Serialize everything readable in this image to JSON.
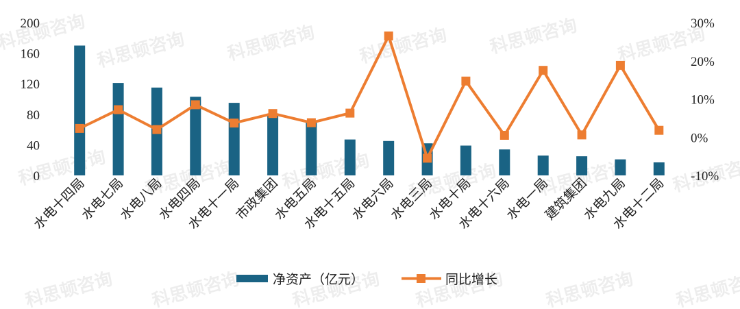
{
  "chart_data": {
    "type": "bar+line",
    "categories": [
      "水电十四局",
      "水电七局",
      "水电八局",
      "水电四局",
      "水电十一局",
      "市政集团",
      "水电五局",
      "水电十五局",
      "水电六局",
      "水电三局",
      "水电十局",
      "水电十六局",
      "水电一局",
      "建筑集团",
      "水电九局",
      "水电十二局"
    ],
    "series": [
      {
        "name": "净资产（亿元）",
        "type": "bar",
        "axis": "left",
        "color": "#1a6384",
        "values": [
          170,
          121,
          115,
          103,
          95,
          78,
          71,
          47,
          45,
          42,
          39,
          34,
          26,
          25,
          21,
          17
        ]
      },
      {
        "name": "同比增长",
        "type": "line",
        "axis": "right",
        "color": "#ed7d31",
        "marker": "square",
        "values": [
          2.3,
          7.2,
          2.0,
          8.5,
          3.7,
          6.2,
          3.8,
          6.3,
          26.5,
          -5.5,
          14.7,
          0.5,
          17.5,
          0.6,
          18.8,
          1.8
        ]
      }
    ],
    "y_left": {
      "min": 0,
      "max": 200,
      "ticks": [
        "0",
        "40",
        "80",
        "120",
        "160",
        "200"
      ]
    },
    "y_right": {
      "min": -10,
      "max": 30,
      "ticks": [
        "-10%",
        "0%",
        "10%",
        "20%",
        "30%"
      ]
    },
    "grid": false,
    "legend_position": "bottom"
  },
  "watermark_text": "科思顿咨询"
}
